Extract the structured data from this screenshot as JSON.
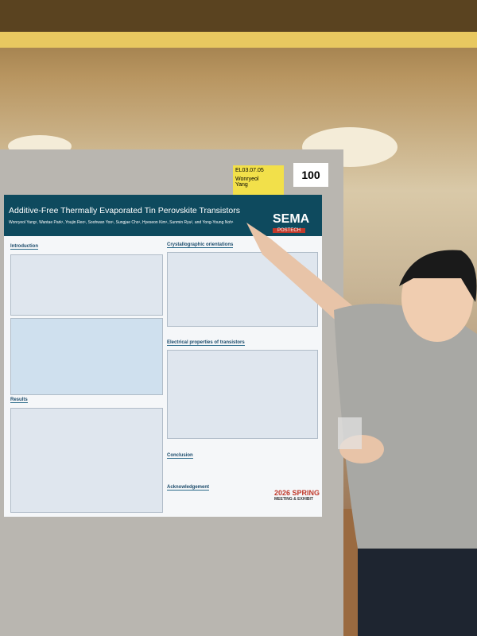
{
  "board_number": "100",
  "sign": {
    "code": "EL03.07.05",
    "name": [
      "Wonryeol",
      "Yang"
    ]
  },
  "poster": {
    "title": "Additive-Free Thermally Evaporated Tin Perovskite Transistors",
    "authors": "Wonryeol Yang¹, Wantae Park¹, Youjin Reo¹, Soohwan Yoo¹, Sungjae Cho¹, Hyeseon Kim¹, Sunmin Ryu², and Yong-Young Noh¹",
    "logo": {
      "name": "SEMA",
      "institution": "POSTECH"
    },
    "sections": {
      "introduction": "Introduction",
      "results": "Results",
      "crystal": "Crystallographic orientations",
      "electrical": "Electrical properties of transistors",
      "conclusion": "Conclusion",
      "acknowledgement": "Acknowledgement"
    },
    "event": {
      "year": "2026",
      "name": "SPRING",
      "subtitle": "MEETING & EXHIBIT"
    }
  }
}
